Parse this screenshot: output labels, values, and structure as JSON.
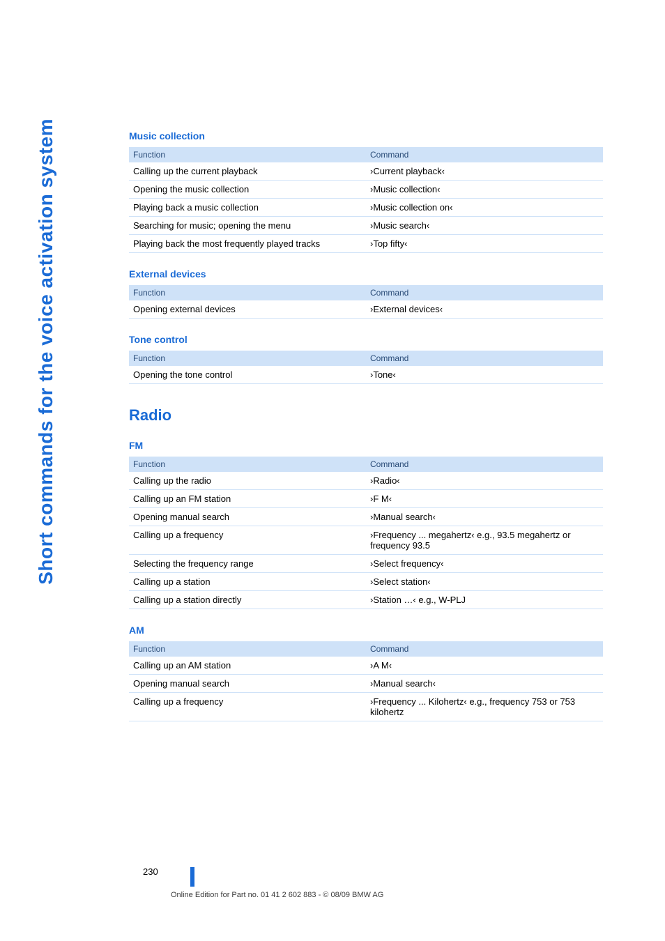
{
  "side_label": "Short commands for the voice activation system",
  "page_number": "230",
  "footnote": "Online Edition for Part no. 01 41 2 602 883 - © 08/09 BMW AG",
  "table_headers": {
    "function": "Function",
    "command": "Command"
  },
  "sections": [
    {
      "title": "Music collection",
      "level": "sub",
      "rows": [
        {
          "f": "Calling up the current playback",
          "c": "›Current playback‹"
        },
        {
          "f": "Opening the music collection",
          "c": "›Music collection‹"
        },
        {
          "f": "Playing back a music collection",
          "c": "›Music collection on‹"
        },
        {
          "f": "Searching for music; opening the menu",
          "c": "›Music search‹"
        },
        {
          "f": "Playing back the most frequently played tracks",
          "c": "›Top fifty‹"
        }
      ]
    },
    {
      "title": "External devices",
      "level": "sub",
      "rows": [
        {
          "f": "Opening external devices",
          "c": "›External devices‹"
        }
      ]
    },
    {
      "title": "Tone control",
      "level": "sub",
      "rows": [
        {
          "f": "Opening the tone control",
          "c": "›Tone‹"
        }
      ]
    },
    {
      "title": "Radio",
      "level": "section",
      "rows": []
    },
    {
      "title": "FM",
      "level": "sub",
      "rows": [
        {
          "f": "Calling up the radio",
          "c": "›Radio‹"
        },
        {
          "f": "Calling up an FM station",
          "c": "›F M‹"
        },
        {
          "f": "Opening manual search",
          "c": "›Manual search‹"
        },
        {
          "f": "Calling up a frequency",
          "c": "›Frequency ... megahertz‹ e.g., 93.5 megahertz or frequency 93.5"
        },
        {
          "f": "Selecting the frequency range",
          "c": "›Select frequency‹"
        },
        {
          "f": "Calling up a station",
          "c": "›Select station‹"
        },
        {
          "f": "Calling up a station directly",
          "c": "›Station …‹ e.g., W-PLJ"
        }
      ]
    },
    {
      "title": "AM",
      "level": "sub",
      "rows": [
        {
          "f": "Calling up an AM station",
          "c": "›A M‹"
        },
        {
          "f": "Opening manual search",
          "c": "›Manual search‹"
        },
        {
          "f": "Calling up a frequency",
          "c": "›Frequency ... Kilohertz‹ e.g., frequency 753 or 753 kilohertz"
        }
      ]
    }
  ]
}
